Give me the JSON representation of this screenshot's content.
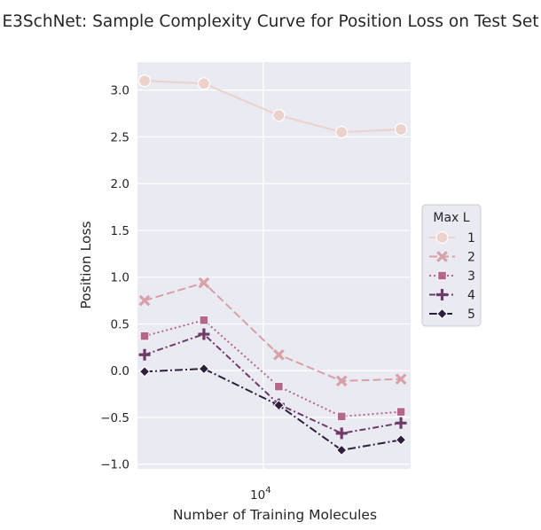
{
  "chart_data": {
    "type": "line",
    "title": "E3SchNet: Sample Complexity Curve for Position Loss on Test Set",
    "xlabel": "Number of Training Molecules",
    "ylabel": "Position Loss",
    "x_scale": "log",
    "x_ticks": [
      {
        "base": "10",
        "exp": "4"
      }
    ],
    "yticks": [
      "3.0",
      "2.5",
      "2.0",
      "1.5",
      "1.0",
      "0.5",
      "0.0",
      "−0.5",
      "−1.0"
    ],
    "ylim": [
      -1.05,
      3.3
    ],
    "x": [
      2500,
      5000,
      12000,
      25000,
      50000
    ],
    "legend_title": "Max L",
    "legend_position": "right",
    "grid": true,
    "series": [
      {
        "name": "1",
        "values": [
          3.1,
          3.07,
          2.73,
          2.55,
          2.58
        ],
        "color": "#edd1cb",
        "dash": "",
        "marker": "circle"
      },
      {
        "name": "2",
        "values": [
          0.75,
          0.94,
          0.17,
          -0.11,
          -0.09
        ],
        "color": "#d8a0a7",
        "dash": "9,4",
        "marker": "x"
      },
      {
        "name": "3",
        "values": [
          0.37,
          0.54,
          -0.17,
          -0.49,
          -0.44
        ],
        "color": "#b2678b",
        "dash": "2,3",
        "marker": "square"
      },
      {
        "name": "4",
        "values": [
          0.17,
          0.39,
          -0.36,
          -0.67,
          -0.56
        ],
        "color": "#6e3a68",
        "dash": "7,3,2,3",
        "marker": "plus"
      },
      {
        "name": "5",
        "values": [
          -0.01,
          0.02,
          -0.37,
          -0.85,
          -0.74
        ],
        "color": "#2d1e3e",
        "dash": "9,3,2,3",
        "marker": "diamond"
      }
    ]
  }
}
